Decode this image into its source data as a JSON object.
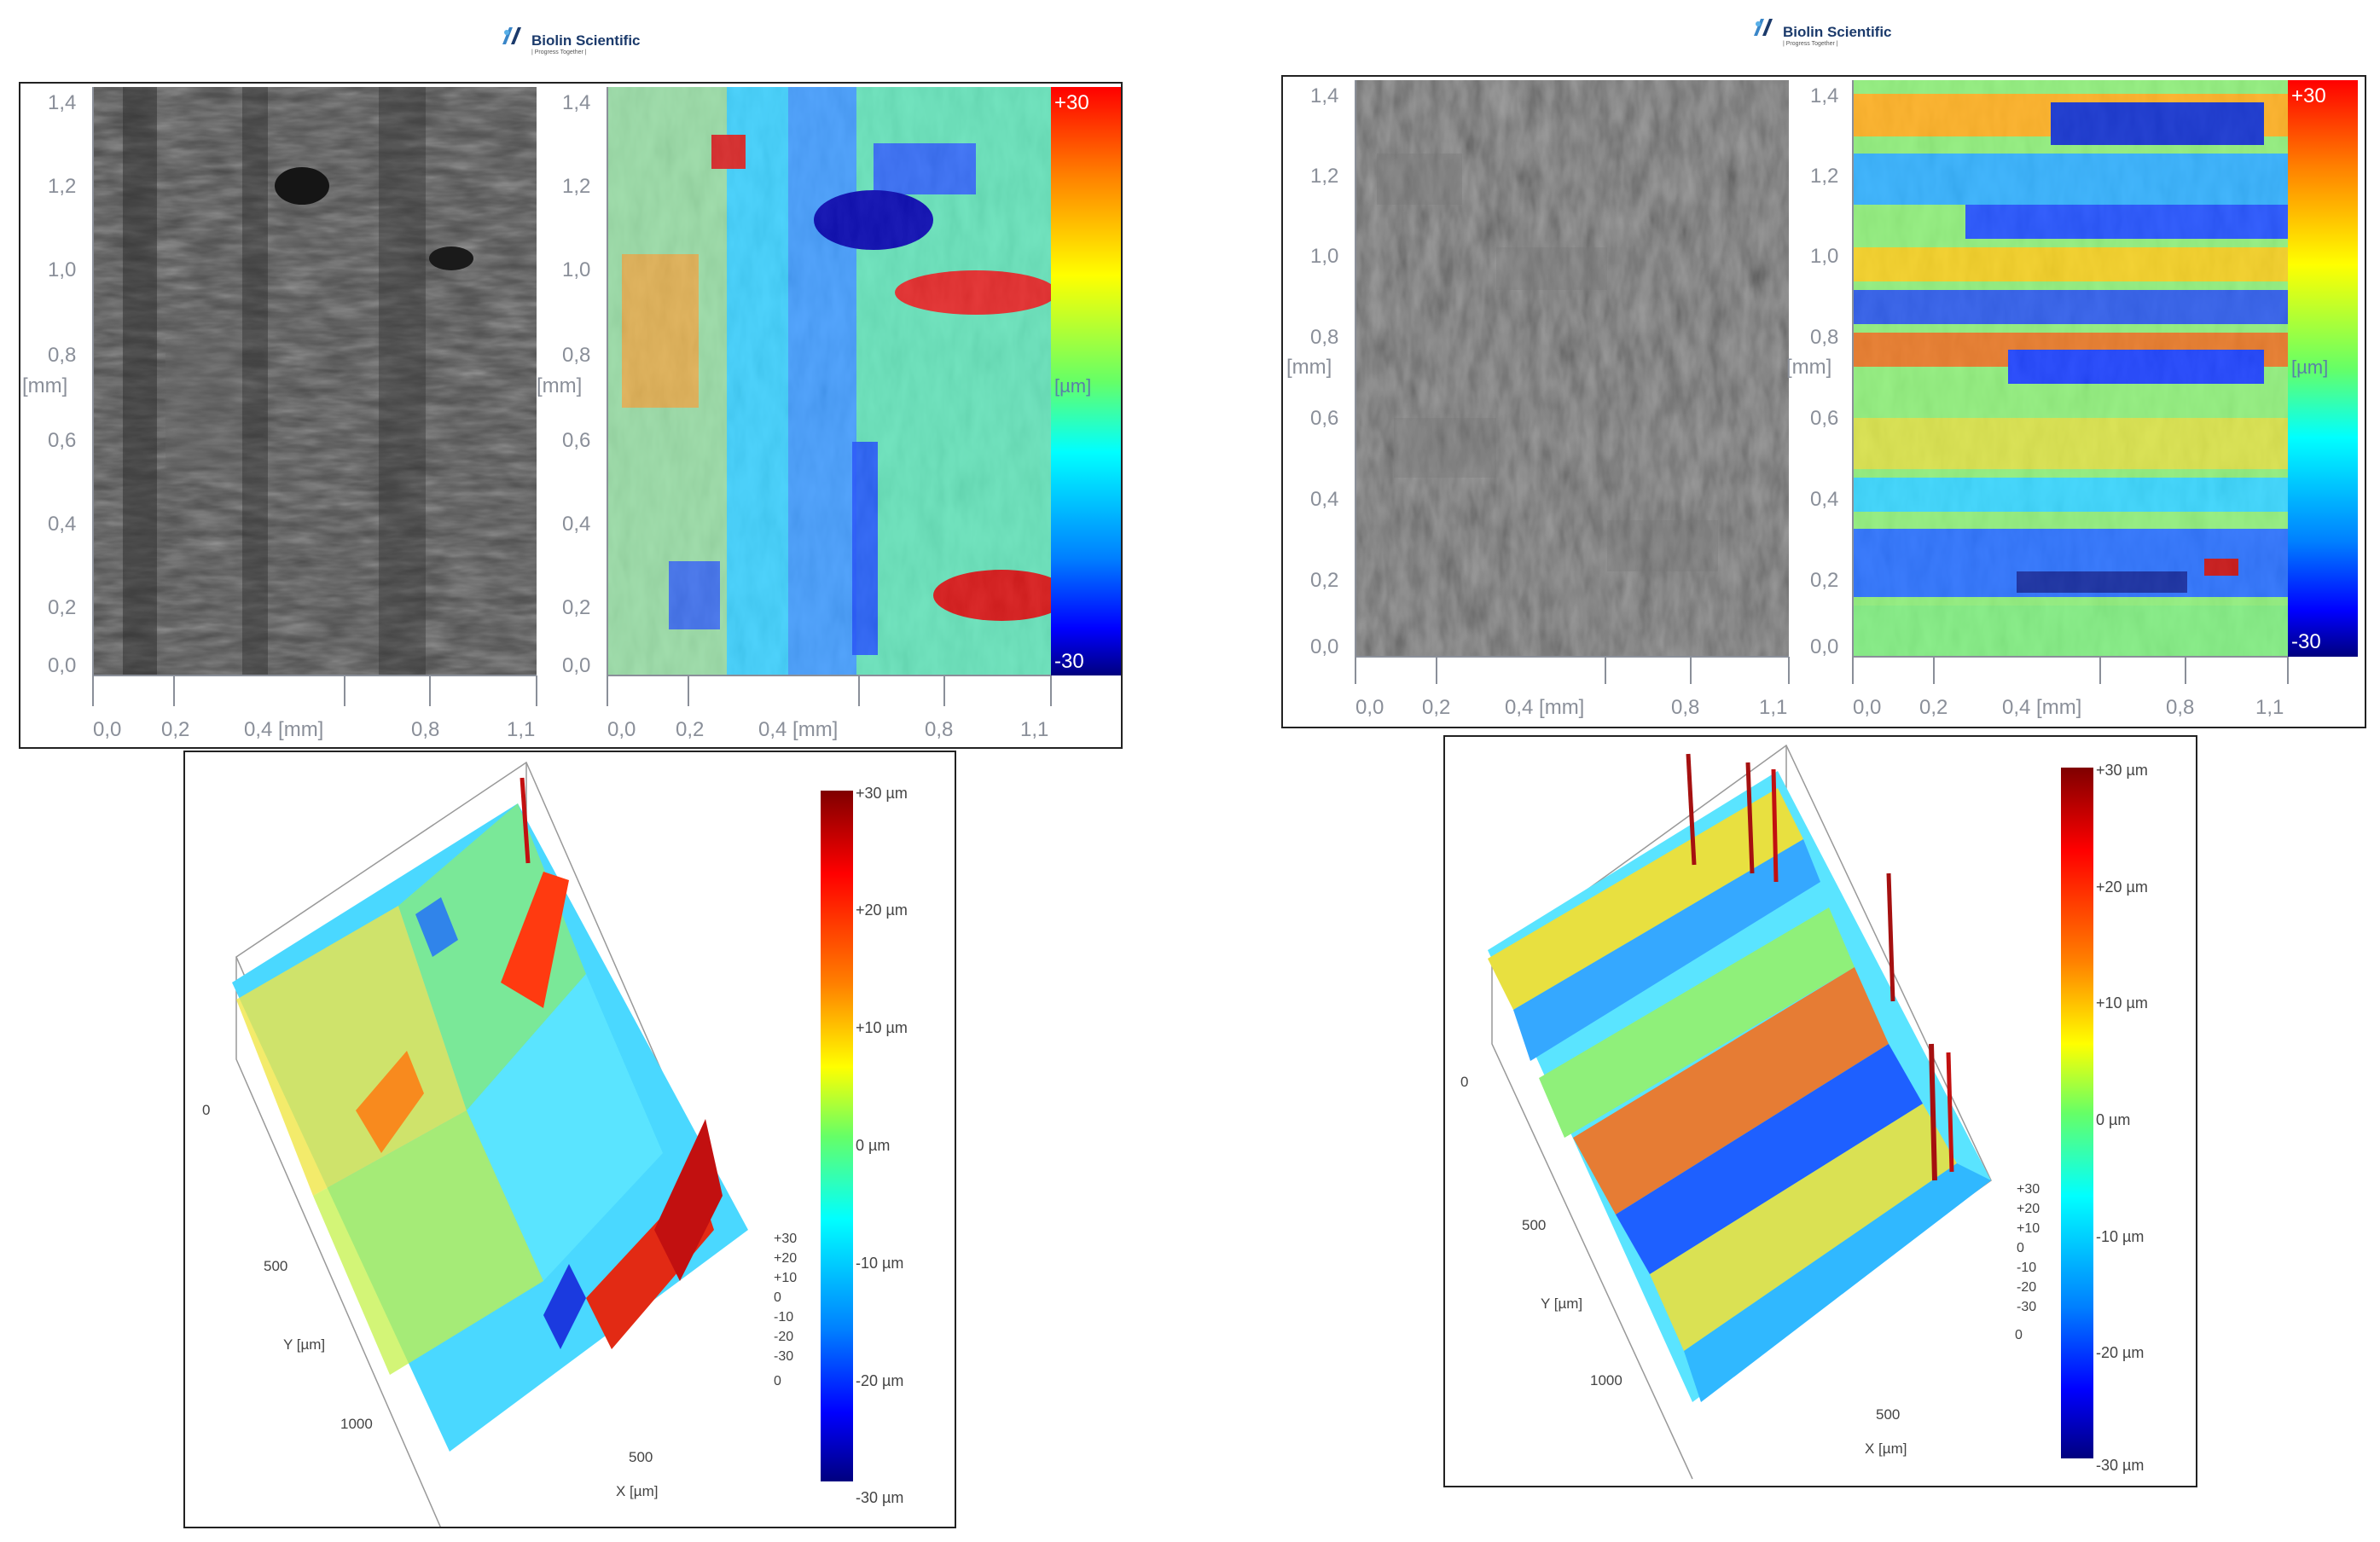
{
  "brand": {
    "name": "Biolin Scientific",
    "tagline": "| Progress Together |"
  },
  "colors": {
    "frame": "#222222",
    "axis": "#8a8f99",
    "brand_blue": "#1b3a6b"
  },
  "colormap": [
    "#00007f",
    "#0000ff",
    "#0080ff",
    "#00ffff",
    "#80ff80",
    "#ffff00",
    "#ff8000",
    "#ff0000",
    "#7f0000"
  ],
  "left": {
    "map2d": {
      "y_ticks": [
        "1,4",
        "1,2",
        "1,0",
        "0,8",
        "0,6",
        "0,4",
        "0,2",
        "0,0"
      ],
      "y_unit": "[mm]",
      "x_ticks_gray": [
        "0,0",
        "0,2",
        "0,4 [mm]",
        "0,8",
        "1,1"
      ],
      "x_ticks_color": [
        "0,0",
        "0,2",
        "0,4 [mm]",
        "0,8",
        "1,1"
      ],
      "colorbar_top": "+30",
      "colorbar_unit": "[µm]",
      "colorbar_bottom": "-30"
    },
    "plot3d": {
      "colorbar_labels": [
        "+30 µm",
        "+20 µm",
        "+10 µm",
        "0 µm",
        "-10 µm",
        "-20 µm",
        "-30 µm"
      ],
      "z_ticks": [
        "+30",
        "+20",
        "+10",
        "0",
        "-10",
        "-20",
        "-30"
      ],
      "y_axis_ticks": [
        "0",
        "500",
        "1000"
      ],
      "x_axis_ticks": [
        "0",
        "500"
      ],
      "y_axis_label": "Y [µm]",
      "x_axis_label": "X [µm]"
    }
  },
  "right": {
    "map2d": {
      "y_ticks": [
        "1,4",
        "1,2",
        "1,0",
        "0,8",
        "0,6",
        "0,4",
        "0,2",
        "0,0"
      ],
      "y_unit": "[mm]",
      "x_ticks_gray": [
        "0,0",
        "0,2",
        "0,4 [mm]",
        "0,8",
        "1,1"
      ],
      "x_ticks_color": [
        "0,0",
        "0,2",
        "0,4 [mm]",
        "0,8",
        "1,1"
      ],
      "colorbar_top": "+30",
      "colorbar_unit": "[µm]",
      "colorbar_bottom": "-30"
    },
    "plot3d": {
      "colorbar_labels": [
        "+30 µm",
        "+20 µm",
        "+10 µm",
        "0 µm",
        "-10 µm",
        "-20 µm",
        "-30 µm"
      ],
      "z_ticks": [
        "+30",
        "+20",
        "+10",
        "0",
        "-10",
        "-20",
        "-30"
      ],
      "y_axis_ticks": [
        "0",
        "500",
        "1000"
      ],
      "x_axis_ticks": [
        "0",
        "500"
      ],
      "y_axis_label": "Y [µm]",
      "x_axis_label": "X [µm]"
    }
  }
}
